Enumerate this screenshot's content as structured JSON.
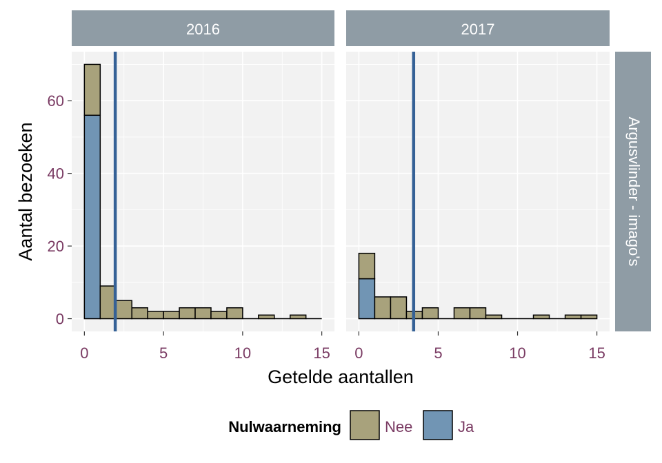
{
  "chart_data": {
    "type": "histogram",
    "x_label": "Getelde aantallen",
    "y_label": "Aantal bezoeken",
    "row_strip": "Argusvlinder - imago's",
    "x_ticks": [
      0,
      5,
      10,
      15
    ],
    "y_ticks": [
      0,
      20,
      40,
      60
    ],
    "xlim": [
      -0.8,
      15.8
    ],
    "ylim": [
      -3.5,
      73.5
    ],
    "bin_width": 1,
    "bin_starts": [
      0,
      1,
      2,
      3,
      4,
      5,
      6,
      7,
      8,
      9,
      10,
      11,
      12,
      13,
      14
    ],
    "legend": {
      "title": "Nulwaarneming",
      "items": [
        {
          "label": "Nee",
          "color": "#a8a27c"
        },
        {
          "label": "Ja",
          "color": "#7195b4"
        }
      ]
    },
    "colors": {
      "nee": "#a8a27c",
      "ja": "#7195b4",
      "vline": "#356196",
      "panel_bg": "#f2f2f2",
      "grid": "#ffffff",
      "strip_bg": "#8f9ca5",
      "tick_label": "#7a3b63"
    },
    "facets": [
      {
        "label": "2016",
        "vline": 1.95,
        "counts_nee": [
          14,
          9,
          5,
          3,
          2,
          2,
          3,
          3,
          2,
          3,
          0,
          1,
          0,
          1,
          0
        ],
        "counts_ja": [
          56,
          0,
          0,
          0,
          0,
          0,
          0,
          0,
          0,
          0,
          0,
          0,
          0,
          0,
          0
        ]
      },
      {
        "label": "2017",
        "vline": 3.45,
        "counts_nee": [
          7,
          6,
          6,
          2,
          3,
          0,
          3,
          3,
          1,
          0,
          0,
          1,
          0,
          1,
          1
        ],
        "counts_ja": [
          11,
          0,
          0,
          0,
          0,
          0,
          0,
          0,
          0,
          0,
          0,
          0,
          0,
          0,
          0
        ]
      }
    ]
  }
}
